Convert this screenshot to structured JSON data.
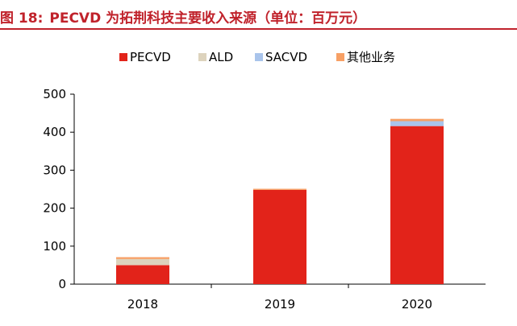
{
  "figure": {
    "label": "图 18:",
    "title": "PECVD 为拓荆科技主要收入来源（单位：百万元）"
  },
  "chart_data": {
    "type": "bar",
    "stacked": true,
    "categories": [
      "2018",
      "2019",
      "2020"
    ],
    "series": [
      {
        "name": "PECVD",
        "color": "#e2231a",
        "values": [
          50,
          248,
          416
        ]
      },
      {
        "name": "ALD",
        "color": "#ddd3bd",
        "values": [
          16,
          0,
          0
        ]
      },
      {
        "name": "SACVD",
        "color": "#a9c4eb",
        "values": [
          0,
          0,
          13
        ]
      },
      {
        "name": "其他业务",
        "color": "#f7a065",
        "values": [
          5,
          3,
          6
        ]
      }
    ],
    "ylim": [
      0,
      500
    ],
    "yticks": [
      0,
      100,
      200,
      300,
      400,
      500
    ],
    "legend_position": "top",
    "grid": false
  }
}
